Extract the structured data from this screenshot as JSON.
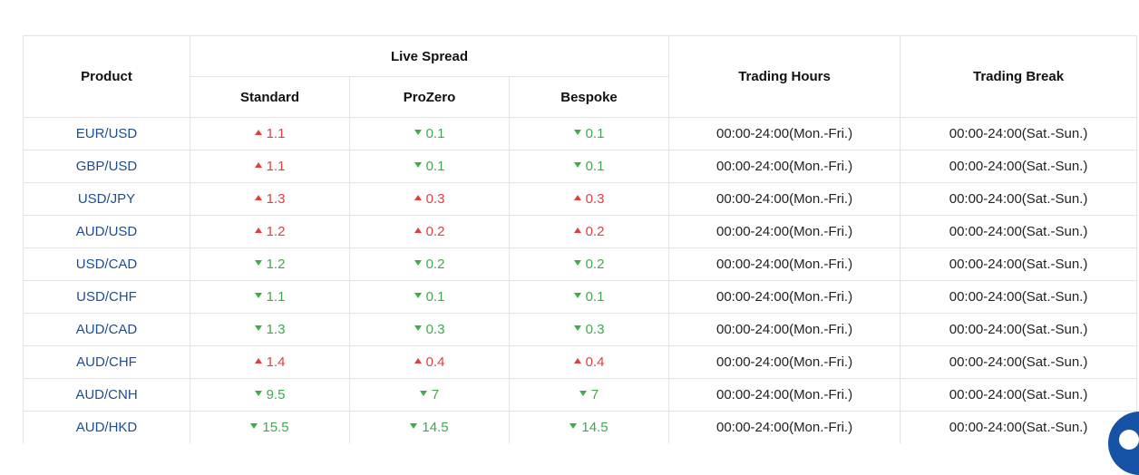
{
  "headers": {
    "product": "Product",
    "live_spread": "Live Spread",
    "standard": "Standard",
    "prozero": "ProZero",
    "bespoke": "Bespoke",
    "trading_hours": "Trading Hours",
    "trading_break": "Trading Break"
  },
  "colors": {
    "up": "#e0413c",
    "down": "#3faa4c",
    "product_link": "#1f4e8c",
    "chat_bubble": "#1652a6"
  },
  "rows": [
    {
      "product": "EUR/USD",
      "standard": {
        "value": "1.1",
        "dir": "up"
      },
      "prozero": {
        "value": "0.1",
        "dir": "down"
      },
      "bespoke": {
        "value": "0.1",
        "dir": "down"
      },
      "hours": "00:00-24:00(Mon.-Fri.)",
      "break": "00:00-24:00(Sat.-Sun.)"
    },
    {
      "product": "GBP/USD",
      "standard": {
        "value": "1.1",
        "dir": "up"
      },
      "prozero": {
        "value": "0.1",
        "dir": "down"
      },
      "bespoke": {
        "value": "0.1",
        "dir": "down"
      },
      "hours": "00:00-24:00(Mon.-Fri.)",
      "break": "00:00-24:00(Sat.-Sun.)"
    },
    {
      "product": "USD/JPY",
      "standard": {
        "value": "1.3",
        "dir": "up"
      },
      "prozero": {
        "value": "0.3",
        "dir": "up"
      },
      "bespoke": {
        "value": "0.3",
        "dir": "up"
      },
      "hours": "00:00-24:00(Mon.-Fri.)",
      "break": "00:00-24:00(Sat.-Sun.)"
    },
    {
      "product": "AUD/USD",
      "standard": {
        "value": "1.2",
        "dir": "up"
      },
      "prozero": {
        "value": "0.2",
        "dir": "up"
      },
      "bespoke": {
        "value": "0.2",
        "dir": "up"
      },
      "hours": "00:00-24:00(Mon.-Fri.)",
      "break": "00:00-24:00(Sat.-Sun.)"
    },
    {
      "product": "USD/CAD",
      "standard": {
        "value": "1.2",
        "dir": "down"
      },
      "prozero": {
        "value": "0.2",
        "dir": "down"
      },
      "bespoke": {
        "value": "0.2",
        "dir": "down"
      },
      "hours": "00:00-24:00(Mon.-Fri.)",
      "break": "00:00-24:00(Sat.-Sun.)"
    },
    {
      "product": "USD/CHF",
      "standard": {
        "value": "1.1",
        "dir": "down"
      },
      "prozero": {
        "value": "0.1",
        "dir": "down"
      },
      "bespoke": {
        "value": "0.1",
        "dir": "down"
      },
      "hours": "00:00-24:00(Mon.-Fri.)",
      "break": "00:00-24:00(Sat.-Sun.)"
    },
    {
      "product": "AUD/CAD",
      "standard": {
        "value": "1.3",
        "dir": "down"
      },
      "prozero": {
        "value": "0.3",
        "dir": "down"
      },
      "bespoke": {
        "value": "0.3",
        "dir": "down"
      },
      "hours": "00:00-24:00(Mon.-Fri.)",
      "break": "00:00-24:00(Sat.-Sun.)"
    },
    {
      "product": "AUD/CHF",
      "standard": {
        "value": "1.4",
        "dir": "up"
      },
      "prozero": {
        "value": "0.4",
        "dir": "up"
      },
      "bespoke": {
        "value": "0.4",
        "dir": "up"
      },
      "hours": "00:00-24:00(Mon.-Fri.)",
      "break": "00:00-24:00(Sat.-Sun.)"
    },
    {
      "product": "AUD/CNH",
      "standard": {
        "value": "9.5",
        "dir": "down"
      },
      "prozero": {
        "value": "7",
        "dir": "down"
      },
      "bespoke": {
        "value": "7",
        "dir": "down"
      },
      "hours": "00:00-24:00(Mon.-Fri.)",
      "break": "00:00-24:00(Sat.-Sun.)"
    },
    {
      "product": "AUD/HKD",
      "standard": {
        "value": "15.5",
        "dir": "down"
      },
      "prozero": {
        "value": "14.5",
        "dir": "down"
      },
      "bespoke": {
        "value": "14.5",
        "dir": "down"
      },
      "hours": "00:00-24:00(Mon.-Fri.)",
      "break": "00:00-24:00(Sat.-Sun.)"
    }
  ],
  "chat_widget": {
    "icon": "chat-icon"
  }
}
